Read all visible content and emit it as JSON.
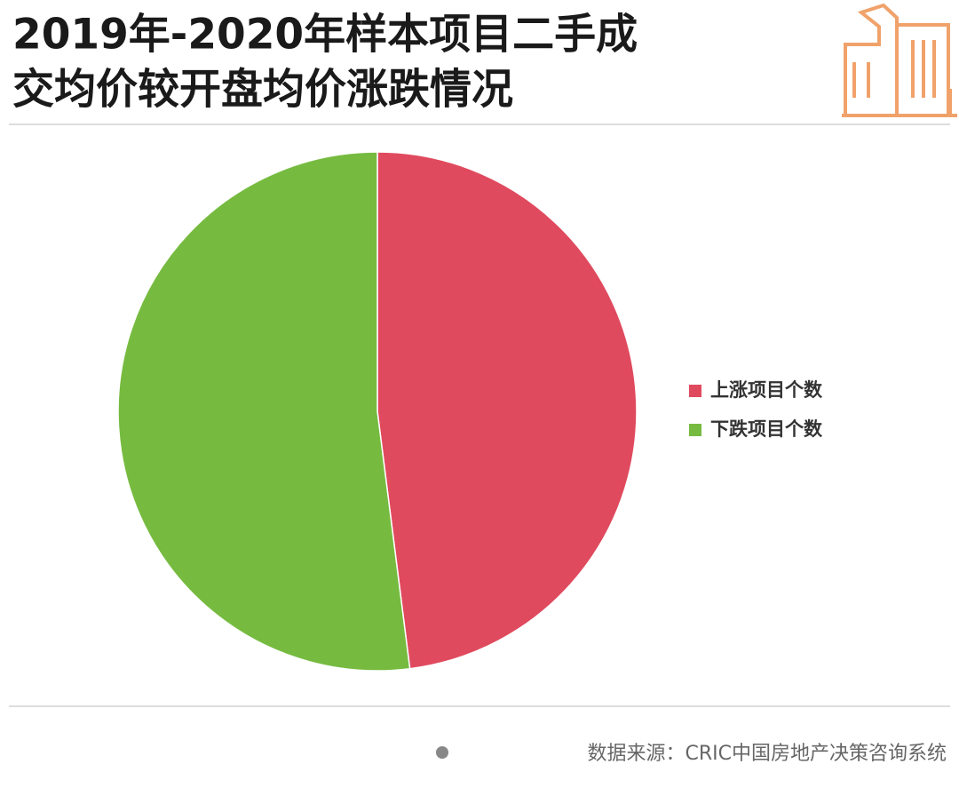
{
  "chart_data": {
    "type": "pie",
    "title": [
      "2019年-2020年样本项目二手成",
      "交均价较开盘均价涨跌情况"
    ],
    "categories": [
      "上涨项目个数",
      "下跌项目个数"
    ],
    "values": [
      48,
      52
    ],
    "colors": [
      "#e04a5e",
      "#76bb40"
    ],
    "legend": "right",
    "source": "数据来源：CRIC中国房地产决策咨询系统"
  }
}
